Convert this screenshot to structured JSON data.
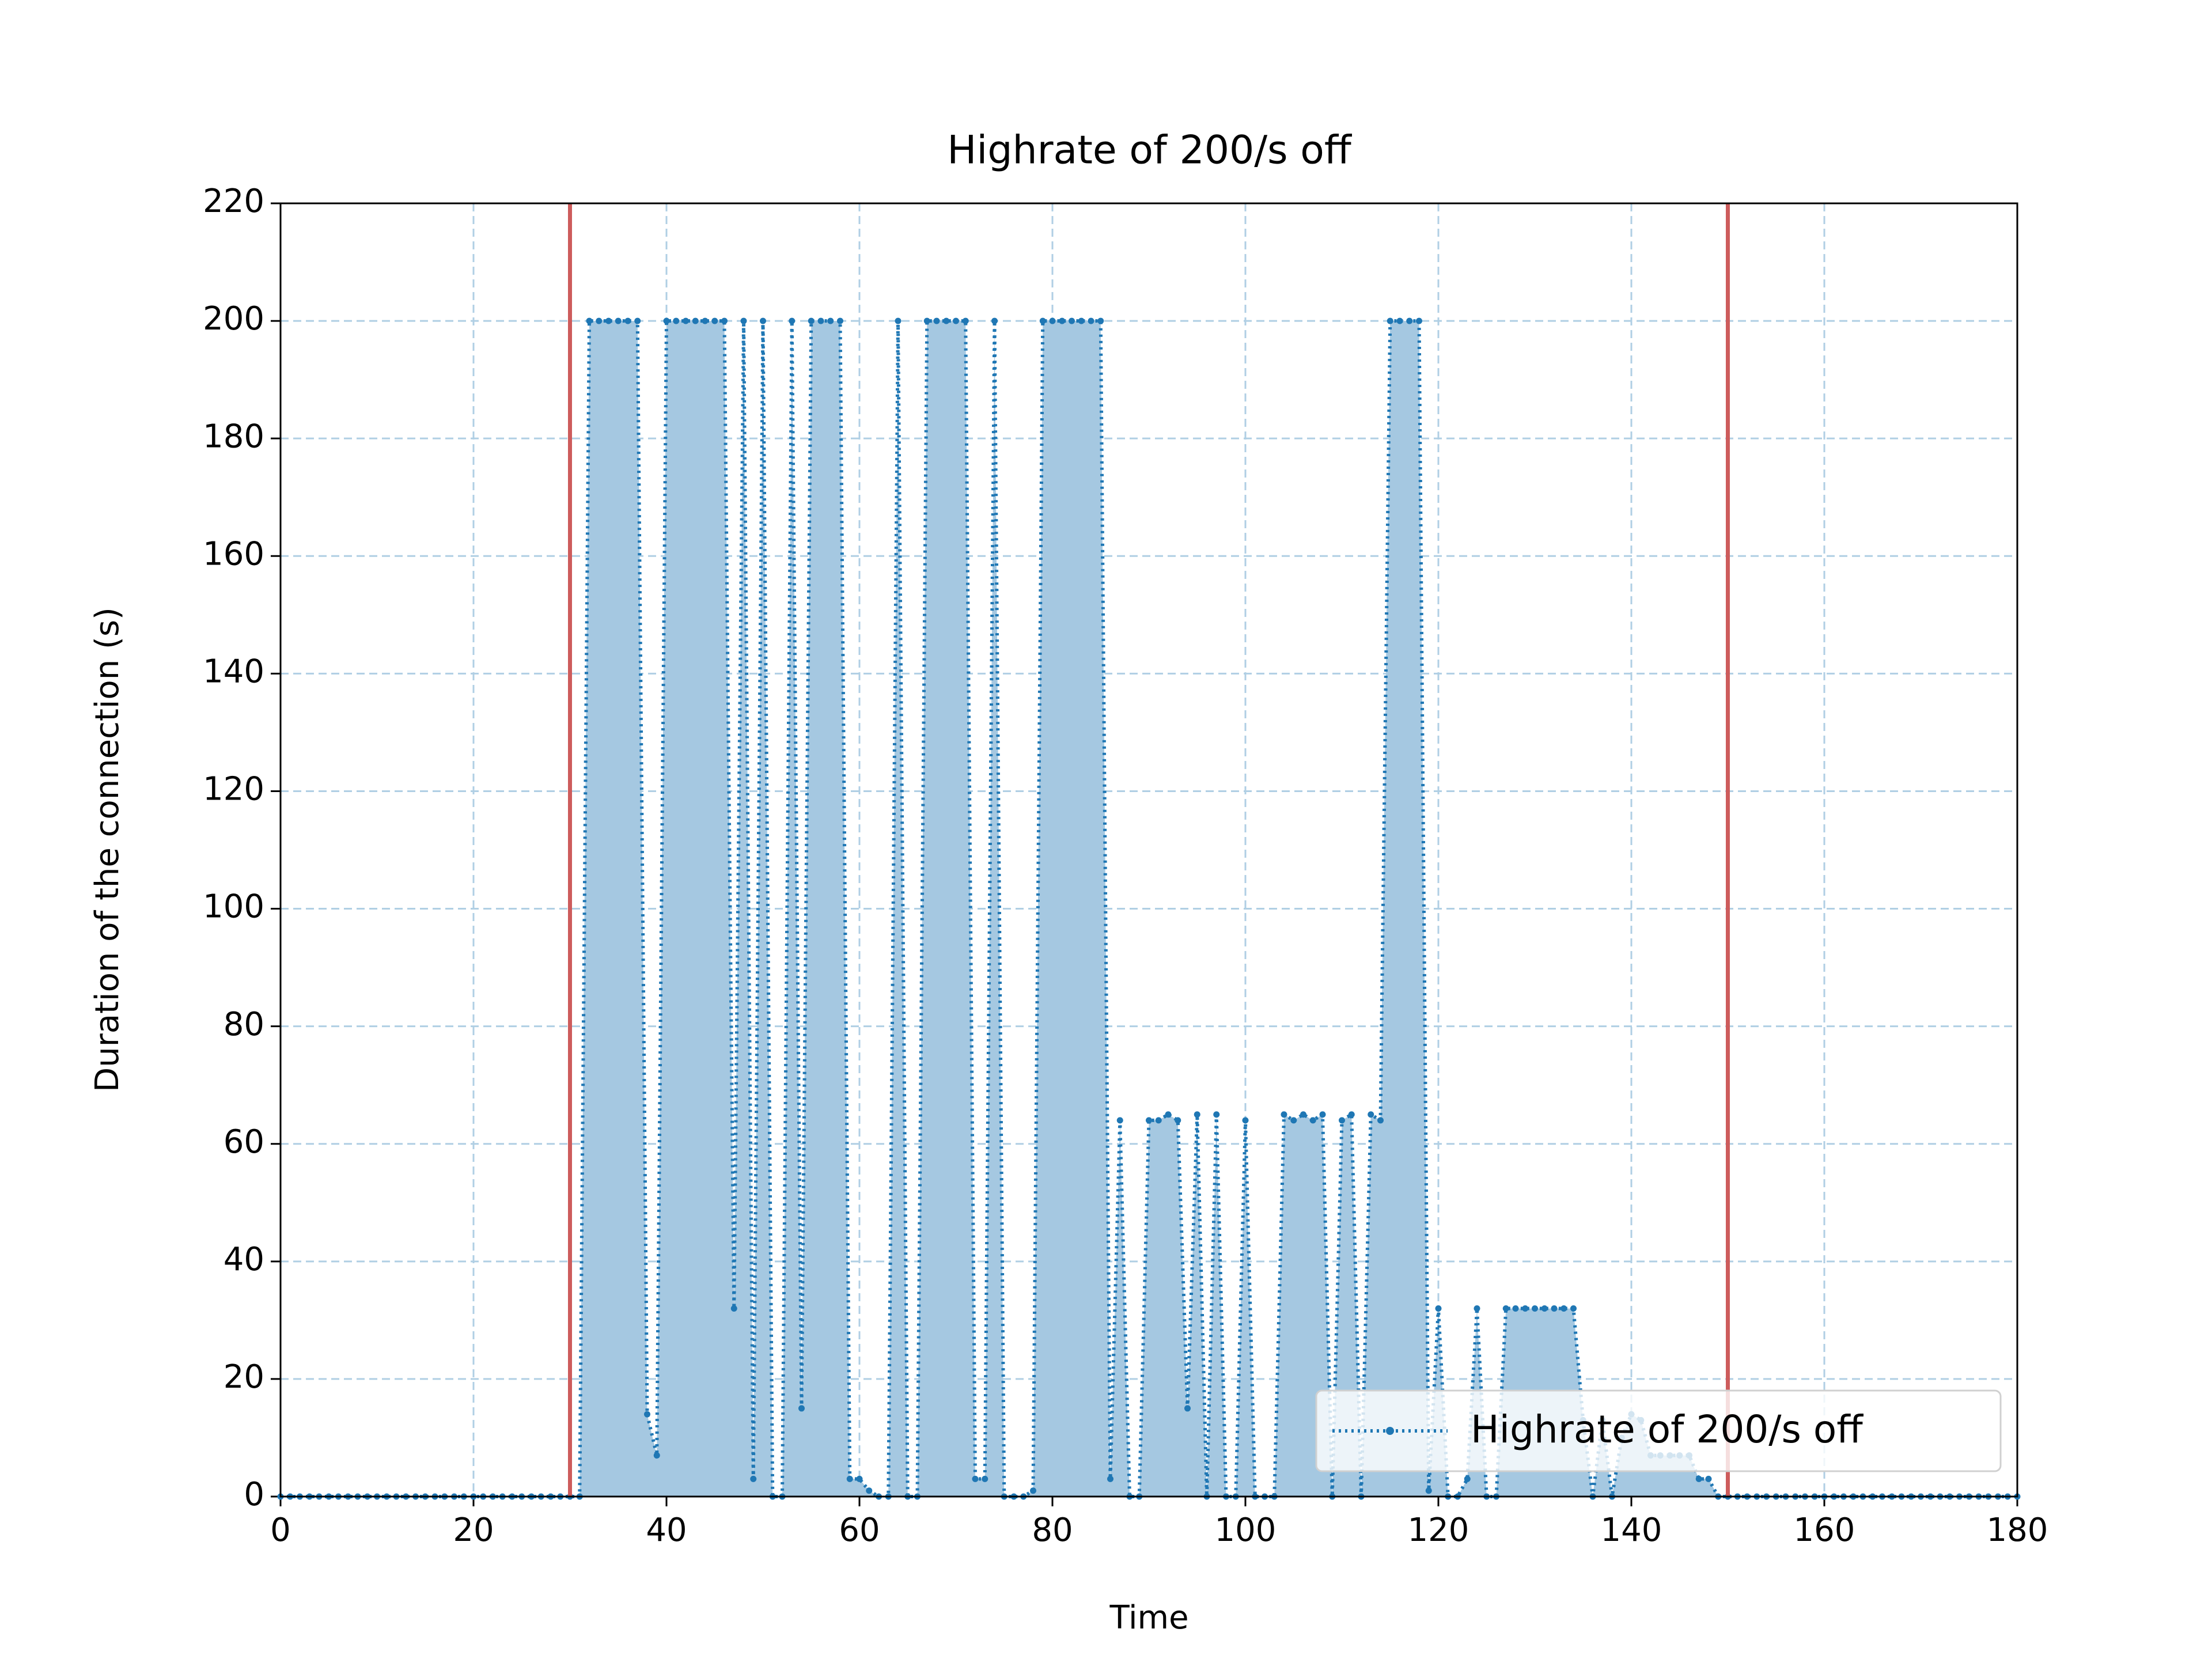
{
  "chart_data": {
    "type": "line",
    "title": "Highrate of 200/s off",
    "x_label": "Time",
    "y_label": "Duration of the connection (s)",
    "x": [
      0,
      1,
      2,
      3,
      4,
      5,
      6,
      7,
      8,
      9,
      10,
      11,
      12,
      13,
      14,
      15,
      16,
      17,
      18,
      19,
      20,
      21,
      22,
      23,
      24,
      25,
      26,
      27,
      28,
      29,
      30,
      31,
      32,
      33,
      34,
      35,
      36,
      37,
      38,
      39,
      40,
      41,
      42,
      43,
      44,
      45,
      46,
      47,
      48,
      49,
      50,
      51,
      52,
      53,
      54,
      55,
      56,
      57,
      58,
      59,
      60,
      61,
      62,
      63,
      64,
      65,
      66,
      67,
      68,
      69,
      70,
      71,
      72,
      73,
      74,
      75,
      76,
      77,
      78,
      79,
      80,
      81,
      82,
      83,
      84,
      85,
      86,
      87,
      88,
      89,
      90,
      91,
      92,
      93,
      94,
      95,
      96,
      97,
      98,
      99,
      100,
      101,
      102,
      103,
      104,
      105,
      106,
      107,
      108,
      109,
      110,
      111,
      112,
      113,
      114,
      115,
      116,
      117,
      118,
      119,
      120,
      121,
      122,
      123,
      124,
      125,
      126,
      127,
      128,
      129,
      130,
      131,
      132,
      133,
      134,
      135,
      136,
      137,
      138,
      139,
      140,
      141,
      142,
      143,
      144,
      145,
      146,
      147,
      148,
      149,
      150,
      151,
      152,
      153,
      154,
      155,
      156,
      157,
      158,
      159,
      160,
      161,
      162,
      163,
      164,
      165,
      166,
      167,
      168,
      169,
      170,
      171,
      172,
      173,
      174,
      175,
      176,
      177,
      178,
      179,
      180
    ],
    "series": [
      {
        "name": "Highrate of 200/s off",
        "color": "#1f77b4",
        "fill_color": "#a5c8e1",
        "values": [
          0,
          0,
          0,
          0,
          0,
          0,
          0,
          0,
          0,
          0,
          0,
          0,
          0,
          0,
          0,
          0,
          0,
          0,
          0,
          0,
          0,
          0,
          0,
          0,
          0,
          0,
          0,
          0,
          0,
          0,
          0,
          0,
          200,
          200,
          200,
          200,
          200,
          200,
          14,
          7,
          200,
          200,
          200,
          200,
          200,
          200,
          200,
          32,
          200,
          3,
          200,
          0,
          0,
          200,
          15,
          200,
          200,
          200,
          200,
          3,
          3,
          1,
          0,
          0,
          200,
          0,
          0,
          200,
          200,
          200,
          200,
          200,
          3,
          3,
          200,
          0,
          0,
          0,
          1,
          200,
          200,
          200,
          200,
          200,
          200,
          200,
          3,
          64,
          0,
          0,
          64,
          64,
          65,
          64,
          15,
          65,
          0,
          65,
          0,
          0,
          64,
          0,
          0,
          0,
          65,
          64,
          65,
          64,
          65,
          0,
          64,
          65,
          0,
          65,
          64,
          200,
          200,
          200,
          200,
          1,
          32,
          0,
          0,
          3,
          32,
          0,
          0,
          32,
          32,
          32,
          32,
          32,
          32,
          32,
          32,
          13,
          0,
          13,
          0,
          10,
          14,
          13,
          7,
          7,
          7,
          7,
          7,
          3,
          3,
          0,
          0,
          0,
          0,
          0,
          0,
          0,
          0,
          0,
          0,
          0,
          0,
          0,
          0,
          0,
          0,
          0,
          0,
          0,
          0,
          0,
          0,
          0,
          0,
          0,
          0,
          0,
          0,
          0,
          0,
          0,
          0
        ]
      }
    ],
    "vlines": [
      30,
      150
    ],
    "vline_color": "#cd5c5c",
    "xlim": [
      0,
      180
    ],
    "xticks": [
      0,
      20,
      40,
      60,
      80,
      100,
      120,
      140,
      160,
      180
    ],
    "ylim": [
      0,
      220
    ],
    "yticks": [
      0,
      20,
      40,
      60,
      80,
      100,
      120,
      140,
      160,
      180,
      200,
      220
    ],
    "grid": true,
    "legend": "lower right"
  }
}
